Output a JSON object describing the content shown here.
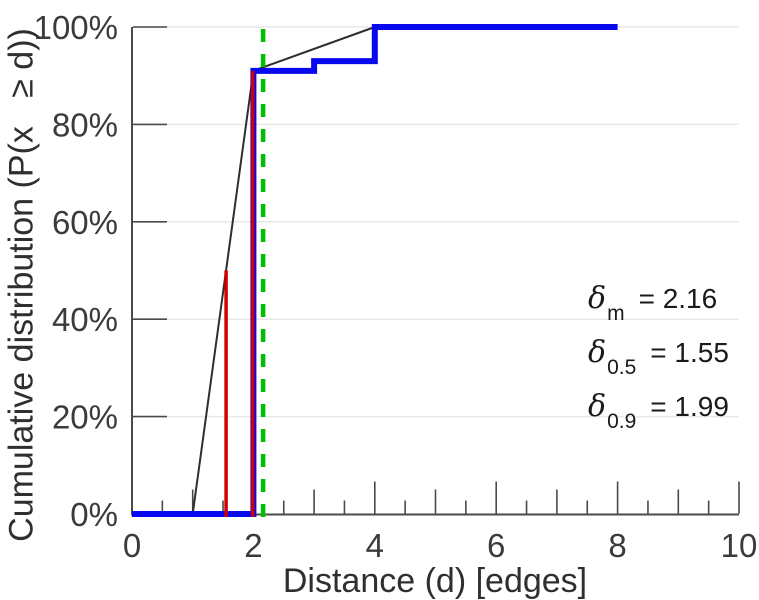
{
  "chart_data": {
    "type": "line",
    "title": "",
    "xlabel": "Distance (d) [edges]",
    "ylabel": "Cumulative distribution (P(x   ≥ d))",
    "xlim": [
      0,
      10
    ],
    "ylim": [
      0,
      100
    ],
    "grid": "horizontal-only",
    "x_ticks": [
      {
        "v": 0,
        "label": "0"
      },
      {
        "v": 2,
        "label": "2"
      },
      {
        "v": 4,
        "label": "4"
      },
      {
        "v": 6,
        "label": "6"
      },
      {
        "v": 8,
        "label": "8"
      },
      {
        "v": 10,
        "label": "10"
      }
    ],
    "x_minor_tick_step": 0.5,
    "y_ticks": [
      {
        "v": 0,
        "label": "0%"
      },
      {
        "v": 20,
        "label": "20%"
      },
      {
        "v": 40,
        "label": "40%"
      },
      {
        "v": 60,
        "label": "60%"
      },
      {
        "v": 80,
        "label": "80%"
      },
      {
        "v": 100,
        "label": "100%"
      }
    ],
    "series": [
      {
        "name": "interpolated-cdf",
        "color": "#2e2e2e",
        "width": 2,
        "points": [
          [
            1,
            0
          ],
          [
            2,
            91
          ],
          [
            4,
            100
          ]
        ]
      },
      {
        "name": "stepwise-cdf",
        "color": "#0808ee",
        "width": 6,
        "points": [
          [
            0,
            0
          ],
          [
            2,
            0
          ],
          [
            2,
            91
          ],
          [
            3,
            91
          ],
          [
            3,
            93
          ],
          [
            4,
            93
          ],
          [
            4,
            100
          ],
          [
            8,
            100
          ]
        ]
      }
    ],
    "vlines": [
      {
        "name": "median-vline",
        "x": 1.55,
        "y0": 0,
        "y1": 50,
        "color": "#cf0000",
        "width": 3.5,
        "dash": ""
      },
      {
        "name": "p90-vline",
        "x": 1.99,
        "y0": 0,
        "y1": 91,
        "color": "#cf0000",
        "width": 3.5,
        "dash": ""
      },
      {
        "name": "mean-vline",
        "x": 2.16,
        "y0": 0,
        "y1": 100,
        "color": "#00bf00",
        "width": 4.5,
        "dash": "13 12"
      }
    ],
    "colors": {
      "grid": "#e9e9e9",
      "axis": "#4a4a4a",
      "tick_label": "#3b3b3b"
    },
    "annotations": [
      {
        "symbol": "δ",
        "sub": "m",
        "rhs": "= 2.16"
      },
      {
        "symbol": "δ",
        "sub": "0.5",
        "rhs": "= 1.55"
      },
      {
        "symbol": "δ",
        "sub": "0.9",
        "rhs": "= 1.99"
      }
    ]
  }
}
